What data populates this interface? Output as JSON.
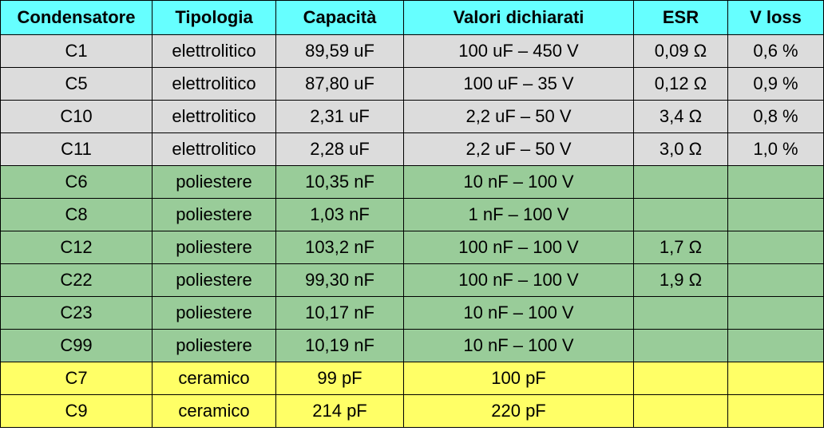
{
  "table": {
    "header": [
      "Condensatore",
      "Tipologia",
      "Capacità",
      "Valori dichiarati",
      "ESR",
      "V loss"
    ],
    "rows": [
      [
        "C1",
        "elettrolitico",
        "89,59 uF",
        "100 uF – 450 V",
        "0,09 Ω",
        "0,6 %"
      ],
      [
        "C5",
        "elettrolitico",
        "87,80 uF",
        "100 uF – 35 V",
        "0,12 Ω",
        "0,9 %"
      ],
      [
        "C10",
        "elettrolitico",
        "2,31 uF",
        "2,2 uF – 50 V",
        "3,4 Ω",
        "0,8 %"
      ],
      [
        "C11",
        "elettrolitico",
        "2,28 uF",
        "2,2 uF – 50 V",
        "3,0 Ω",
        "1,0 %"
      ],
      [
        "C6",
        "poliestere",
        "10,35 nF",
        "10 nF – 100 V",
        null,
        null
      ],
      [
        "C8",
        "poliestere",
        "1,03 nF",
        "1 nF – 100 V",
        null,
        null
      ],
      [
        "C12",
        "poliestere",
        "103,2 nF",
        "100 nF – 100 V",
        "1,7 Ω",
        null
      ],
      [
        "C22",
        "poliestere",
        "99,30 nF",
        "100 nF – 100 V",
        "1,9 Ω",
        null
      ],
      [
        "C23",
        "poliestere",
        "10,17 nF",
        "10 nF – 100 V",
        null,
        null
      ],
      [
        "C99",
        "poliestere",
        "10,19 nF",
        "10 nF – 100 V",
        null,
        null
      ],
      [
        "C7",
        "ceramico",
        "99 pF",
        "100 pF",
        null,
        null
      ],
      [
        "C9",
        "ceramico",
        "214 pF",
        "220 pF",
        null,
        null
      ]
    ]
  }
}
